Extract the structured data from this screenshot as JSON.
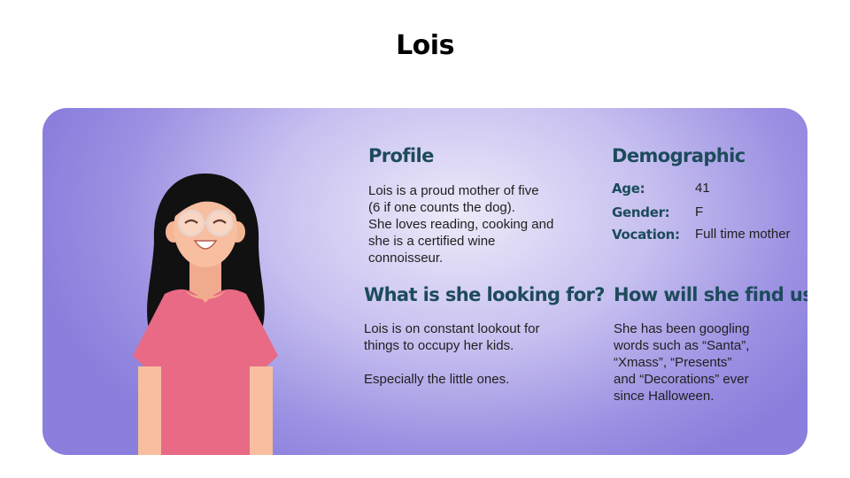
{
  "title": "Lois",
  "profile": {
    "heading": "Profile",
    "text": "Lois is a proud mother of five\n(6 if one counts the dog).\nShe loves reading, cooking and\nshe is a certified wine\nconnoisseur."
  },
  "demographic": {
    "heading": "Demographic",
    "rows": [
      {
        "label": "Age:",
        "value": "41"
      },
      {
        "label": "Gender:",
        "value": "F"
      },
      {
        "label": "Vocation:",
        "value": "Full time mother"
      }
    ]
  },
  "looking_for": {
    "heading": "What is she looking for?",
    "text": "Lois is on constant lookout for\nthings to occupy her kids.\n\nEspecially the little ones."
  },
  "find_us": {
    "heading": "How will she find us?",
    "text": "She has been googling\nwords such as “Santa”,\n“Xmass”, “Presents”\nand “Decorations” ever\nsince Halloween."
  },
  "colors": {
    "heading": "#1d4b5c",
    "card_gradient_light": "#eceaf9",
    "card_gradient_dark": "#8a7fdc",
    "shirt": "#e96a85",
    "skin": "#f7bfa0",
    "hair": "#111111"
  }
}
